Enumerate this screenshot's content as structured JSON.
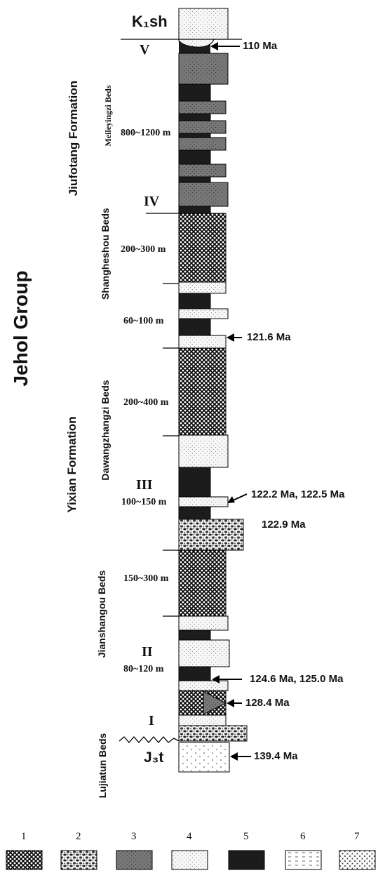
{
  "group": "Jehol Group",
  "formations": {
    "upper": "Jiufotang Formation",
    "lower": "Yixian Formation"
  },
  "beds": {
    "meileyingzi": "Meileyingzi Beds",
    "shangheshou": "Shangheshou Beds",
    "dawangzhangzi": "Dawangzhangzi Beds",
    "jianshangou": "Jianshangou Beds",
    "lujiatun": "Lujiatun Beds"
  },
  "thickness": {
    "meileyingzi": "800~1200 m",
    "shangheshou": "200~300 m",
    "shangheshou_lower": "60~100 m",
    "dawangzhangzi": "200~400 m",
    "dawangzhangzi_lower": "100~150 m",
    "jianshangou": "150~300 m",
    "jianshangou_lower": "80~120 m"
  },
  "units": {
    "top": "K₁sh",
    "base": "J₃t"
  },
  "numerals": {
    "v": "V",
    "iv": "IV",
    "iii": "III",
    "ii": "II",
    "i": "I"
  },
  "ages": {
    "a110": "110 Ma",
    "a1216": "121.6 Ma",
    "a1222": "122.2 Ma, 122.5 Ma",
    "a1229": "122.9 Ma",
    "a1246": "124.6 Ma, 125.0 Ma",
    "a1284": "128.4 Ma",
    "a1394": "139.4 Ma"
  },
  "legend": {
    "numbers": [
      "1",
      "2",
      "3",
      "4",
      "5",
      "6",
      "7"
    ]
  }
}
